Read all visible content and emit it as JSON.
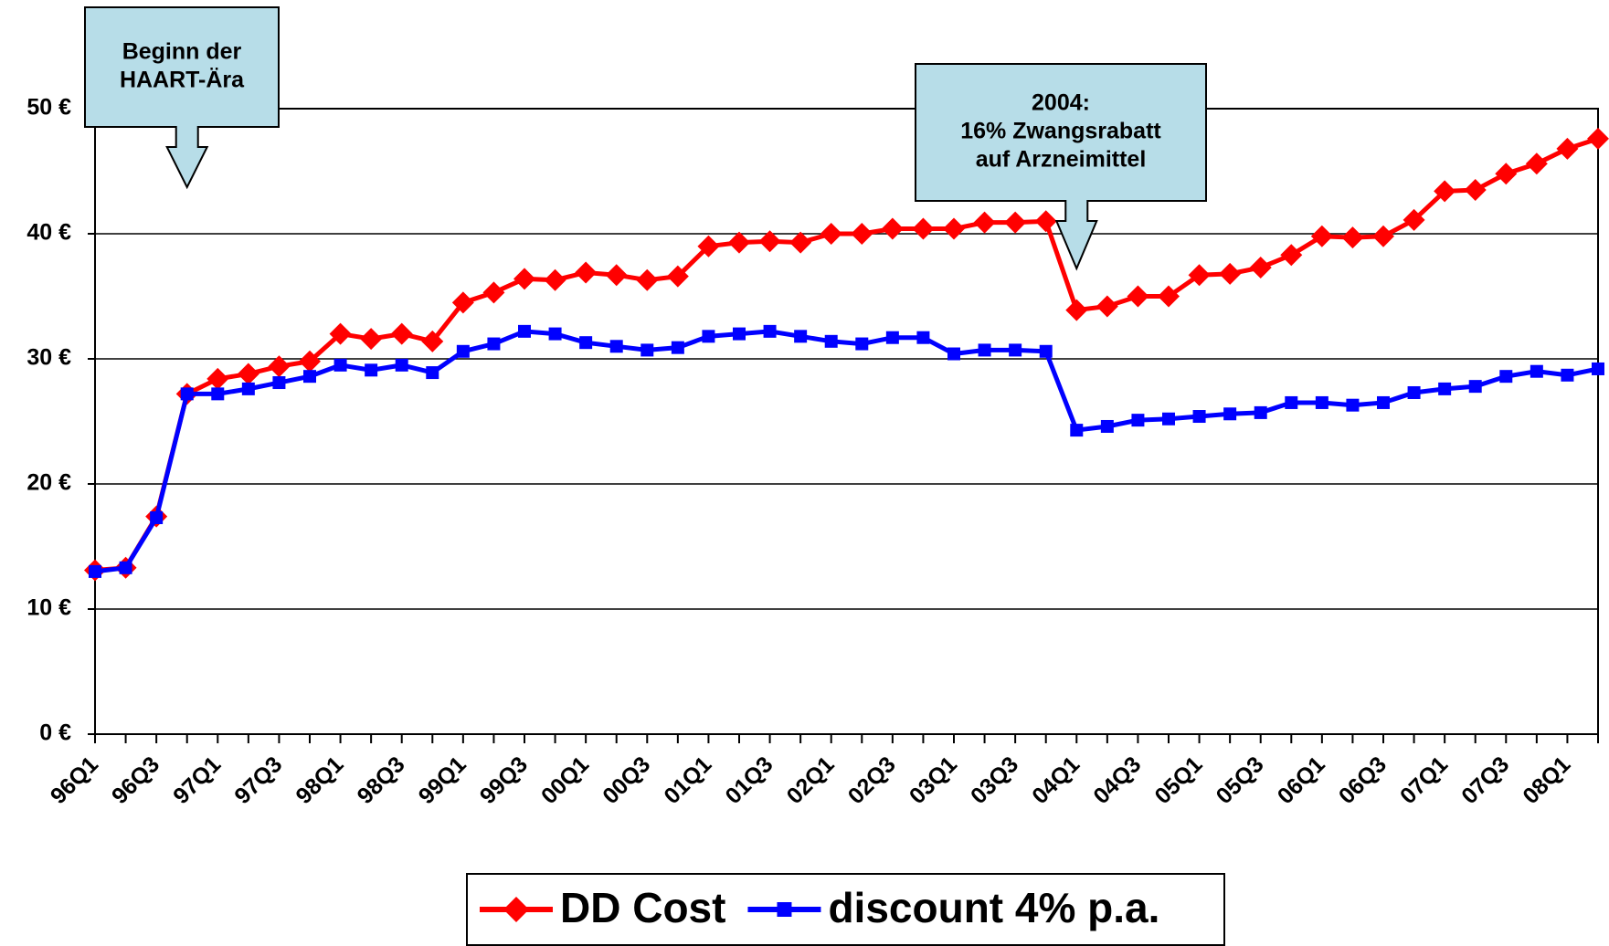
{
  "chart_data": {
    "type": "line",
    "categories": [
      "96Q1",
      null,
      "96Q3",
      null,
      "97Q1",
      null,
      "97Q3",
      null,
      "98Q1",
      null,
      "98Q3",
      null,
      "99Q1",
      null,
      "99Q3",
      null,
      "00Q1",
      null,
      "00Q3",
      null,
      "01Q1",
      null,
      "01Q3",
      null,
      "02Q1",
      null,
      "02Q3",
      null,
      "03Q1",
      null,
      "03Q3",
      null,
      "04Q1",
      null,
      "04Q3",
      null,
      "05Q1",
      null,
      "05Q3",
      null,
      "06Q1",
      null,
      "06Q3",
      null,
      "07Q1",
      null,
      "07Q3",
      null,
      "08Q1",
      null
    ],
    "series": [
      {
        "name": "DD Cost",
        "color": "#ff0000",
        "marker": "diamond",
        "values": [
          13.1,
          13.3,
          17.4,
          27.2,
          28.4,
          28.8,
          29.4,
          29.8,
          32.0,
          31.6,
          32.0,
          31.4,
          34.5,
          35.3,
          36.4,
          36.3,
          36.9,
          36.7,
          36.3,
          36.6,
          39.0,
          39.3,
          39.4,
          39.3,
          40.0,
          40.0,
          40.4,
          40.4,
          40.4,
          40.9,
          40.9,
          41.0,
          33.9,
          34.2,
          35.0,
          35.0,
          36.7,
          36.8,
          37.3,
          38.3,
          39.8,
          39.7,
          39.8,
          41.1,
          43.4,
          43.5,
          44.8,
          45.6,
          46.8,
          47.6
        ]
      },
      {
        "name": "discount 4% p.a.",
        "color": "#0000ff",
        "marker": "square",
        "values": [
          13.0,
          13.3,
          17.3,
          27.2,
          27.2,
          27.6,
          28.1,
          28.6,
          29.5,
          29.1,
          29.5,
          28.9,
          30.6,
          31.2,
          32.2,
          32.0,
          31.3,
          31.0,
          30.7,
          30.9,
          31.8,
          32.0,
          32.2,
          31.8,
          31.4,
          31.2,
          31.7,
          31.7,
          30.4,
          30.7,
          30.7,
          30.6,
          24.3,
          24.6,
          25.1,
          25.2,
          25.4,
          25.6,
          25.7,
          26.5,
          26.5,
          26.3,
          26.5,
          27.3,
          27.6,
          27.8,
          28.6,
          29.0,
          28.7,
          29.2
        ]
      }
    ],
    "ylim": [
      0,
      50
    ],
    "yticks": [
      {
        "value": 0,
        "label": "0 €"
      },
      {
        "value": 10,
        "label": "10 €"
      },
      {
        "value": 20,
        "label": "20 €"
      },
      {
        "value": 30,
        "label": "30 €"
      },
      {
        "value": 40,
        "label": "40 €"
      },
      {
        "value": 50,
        "label": "50 €"
      }
    ],
    "grid": true,
    "legend": "bottom",
    "annotations": [
      {
        "lines": [
          "Beginn der",
          "HAART-Ära"
        ],
        "category_index": 3
      },
      {
        "lines": [
          "2004:",
          "16% Zwangsrabatt",
          "auf Arzneimittel"
        ],
        "category_index": 32
      }
    ]
  }
}
